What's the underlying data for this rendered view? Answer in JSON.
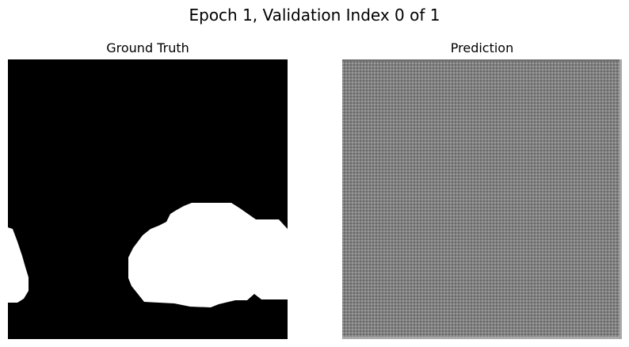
{
  "figure": {
    "suptitle": "Epoch 1, Validation Index 0 of 1"
  },
  "panels": [
    {
      "title": "Ground Truth",
      "content": "binary segmentation mask: white foreground regions on black background"
    },
    {
      "title": "Prediction",
      "content": "uniform mid-gray fine checkerboard pattern"
    }
  ],
  "colors": {
    "background": "#000000",
    "foreground": "#ffffff",
    "prediction_gray": "#808080",
    "prediction_light": "#9a9a9a",
    "prediction_dark": "#6a6a6a"
  },
  "chart_data": [
    {
      "type": "heatmap",
      "title": "Ground Truth"
    },
    {
      "type": "heatmap",
      "title": "Prediction"
    }
  ]
}
